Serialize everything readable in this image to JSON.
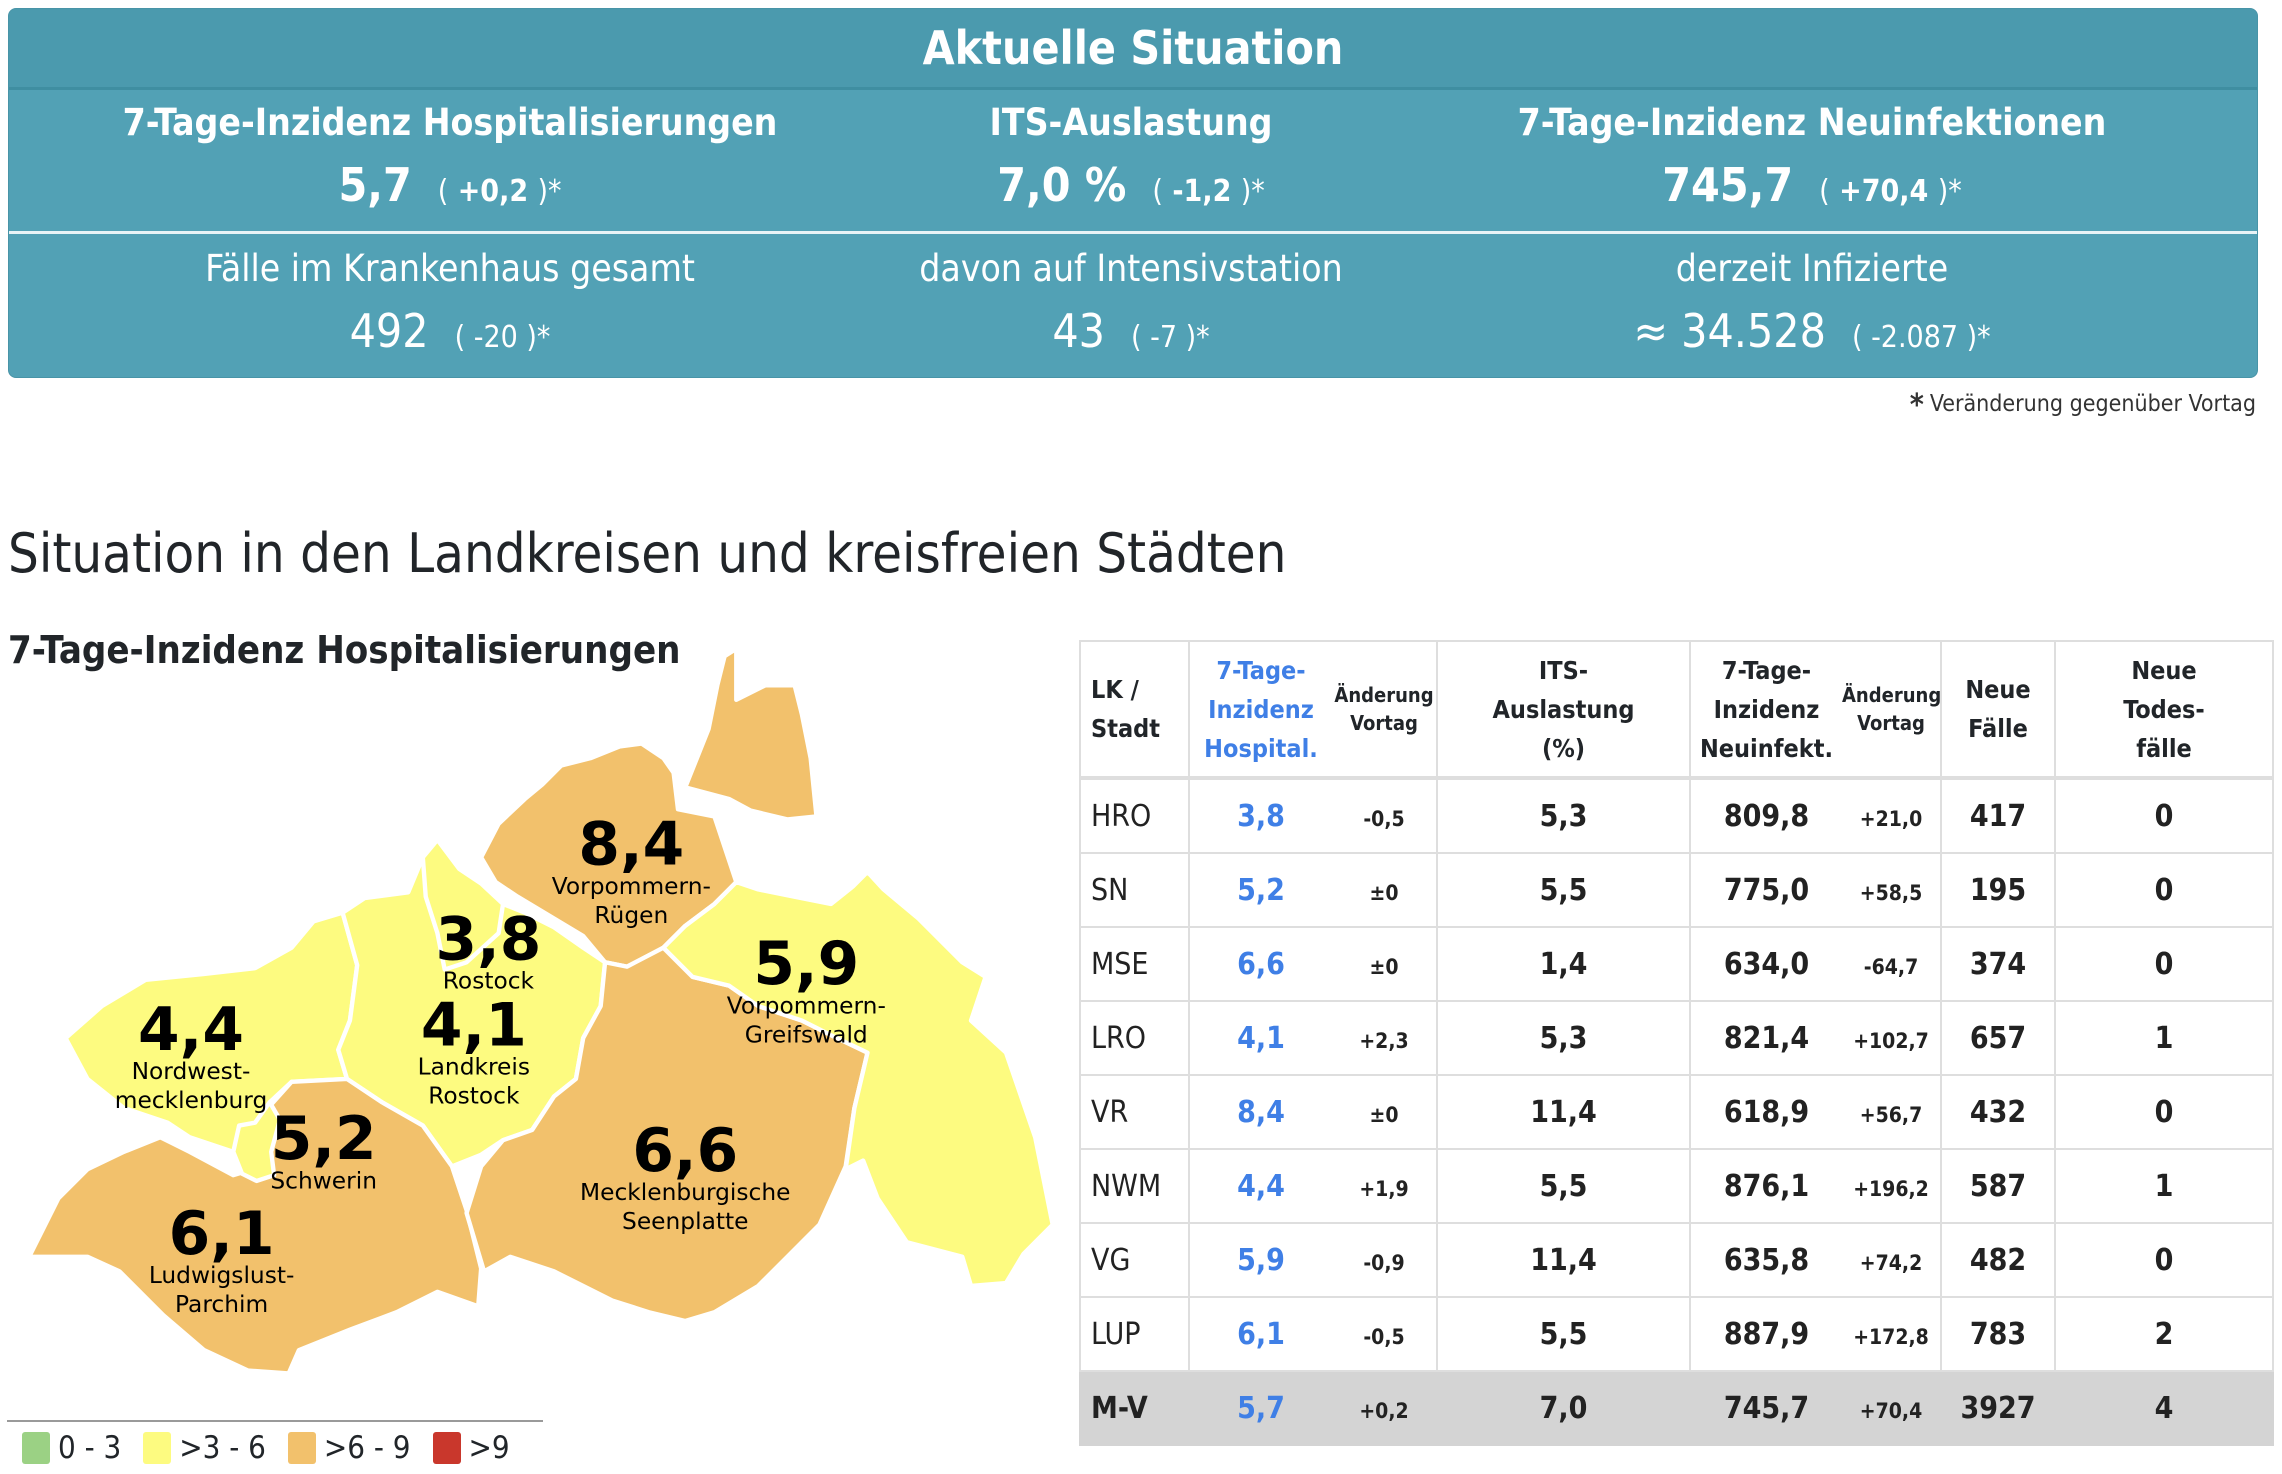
{
  "summary": {
    "title": "Aktuelle Situation",
    "top": [
      {
        "label": "7-Tage-Inzidenz Hospitalisierungen",
        "value": "5,7",
        "change": "+0,2"
      },
      {
        "label": "ITS-Auslastung",
        "value": "7,0 %",
        "change": "-1,2"
      },
      {
        "label": "7-Tage-Inzidenz Neuinfektionen",
        "value": "745,7",
        "change": "+70,4"
      }
    ],
    "bottom": [
      {
        "label": "Fälle im Krankenhaus gesamt",
        "value": "492",
        "change": "-20"
      },
      {
        "label": "davon auf Intensivstation",
        "value": "43",
        "change": "-7"
      },
      {
        "label": "derzeit Infizierte",
        "value": "≈ 34.528",
        "change": "-2.087"
      }
    ],
    "paren_open": "(",
    "paren_close": ")*",
    "footnote_star": "*",
    "footnote_text": "Veränderung gegenüber Vortag"
  },
  "section_title": "Situation in den Landkreisen und kreisfreien Städten",
  "chart_data": {
    "type": "map",
    "title": "7-Tage-Inzidenz Hospitalisierungen",
    "regions": [
      {
        "id": "VR",
        "name_lines": [
          "Vorpommern-",
          "Rügen"
        ],
        "value": 8.4,
        "label": "8,4",
        "class": ">6 - 9"
      },
      {
        "id": "HRO",
        "name_lines": [
          "Rostock"
        ],
        "value": 3.8,
        "label": "3,8",
        "class": ">3 - 6"
      },
      {
        "id": "VG",
        "name_lines": [
          "Vorpommern-",
          "Greifswald"
        ],
        "value": 5.9,
        "label": "5,9",
        "class": ">3 - 6"
      },
      {
        "id": "NWM",
        "name_lines": [
          "Nordwest-",
          "mecklenburg"
        ],
        "value": 4.4,
        "label": "4,4",
        "class": ">3 - 6"
      },
      {
        "id": "LRO",
        "name_lines": [
          "Landkreis",
          "Rostock"
        ],
        "value": 4.1,
        "label": "4,1",
        "class": ">3 - 6"
      },
      {
        "id": "SN",
        "name_lines": [
          "Schwerin"
        ],
        "value": 5.2,
        "label": "5,2",
        "class": ">3 - 6"
      },
      {
        "id": "MSE",
        "name_lines": [
          "Mecklenburgische",
          "Seenplatte"
        ],
        "value": 6.6,
        "label": "6,6",
        "class": ">6 - 9"
      },
      {
        "id": "LUP",
        "name_lines": [
          "Ludwigslust-",
          "Parchim"
        ],
        "value": 6.1,
        "label": "6,1",
        "class": ">6 - 9"
      }
    ],
    "legend": [
      {
        "label": "0 - 3",
        "color": "#9bd184"
      },
      {
        "label": ">3 - 6",
        "color": "#fdfb80"
      },
      {
        "label": ">6 - 9",
        "color": "#f2c16c"
      },
      {
        "label": ">9",
        "color": "#c9372c"
      }
    ]
  },
  "table": {
    "headers": {
      "lk": "LK / Stadt",
      "hosp": "7-Tage- Inzidenz Hospital.",
      "hosp_change": "Änderung Vortag",
      "its": "ITS- Auslastung (%)",
      "inf": "7-Tage- Inzidenz Neuinfekt.",
      "inf_change": "Änderung Vortag",
      "cases": "Neue Fälle",
      "deaths": "Neue Todes- fälle"
    },
    "header_lines": {
      "lk": [
        "LK /",
        "Stadt"
      ],
      "hosp": [
        "7-Tage-",
        "Inzidenz",
        "Hospital."
      ],
      "hosp_change": [
        "Änderung",
        "Vortag"
      ],
      "its": [
        "ITS-",
        "Auslastung",
        "(%)"
      ],
      "inf": [
        "7-Tage-",
        "Inzidenz",
        "Neuinfekt."
      ],
      "inf_change": [
        "Änderung",
        "Vortag"
      ],
      "cases": [
        "Neue",
        "Fälle"
      ],
      "deaths": [
        "Neue",
        "Todes-",
        "fälle"
      ]
    },
    "rows": [
      {
        "lk": "HRO",
        "hosp": "3,8",
        "hosp_change": "-0,5",
        "its": "5,3",
        "inf": "809,8",
        "inf_change": "+21,0",
        "cases": "417",
        "deaths": "0"
      },
      {
        "lk": "SN",
        "hosp": "5,2",
        "hosp_change": "±0",
        "its": "5,5",
        "inf": "775,0",
        "inf_change": "+58,5",
        "cases": "195",
        "deaths": "0"
      },
      {
        "lk": "MSE",
        "hosp": "6,6",
        "hosp_change": "±0",
        "its": "1,4",
        "inf": "634,0",
        "inf_change": "-64,7",
        "cases": "374",
        "deaths": "0"
      },
      {
        "lk": "LRO",
        "hosp": "4,1",
        "hosp_change": "+2,3",
        "its": "5,3",
        "inf": "821,4",
        "inf_change": "+102,7",
        "cases": "657",
        "deaths": "1"
      },
      {
        "lk": "VR",
        "hosp": "8,4",
        "hosp_change": "±0",
        "its": "11,4",
        "inf": "618,9",
        "inf_change": "+56,7",
        "cases": "432",
        "deaths": "0"
      },
      {
        "lk": "NWM",
        "hosp": "4,4",
        "hosp_change": "+1,9",
        "its": "5,5",
        "inf": "876,1",
        "inf_change": "+196,2",
        "cases": "587",
        "deaths": "1"
      },
      {
        "lk": "VG",
        "hosp": "5,9",
        "hosp_change": "-0,9",
        "its": "11,4",
        "inf": "635,8",
        "inf_change": "+74,2",
        "cases": "482",
        "deaths": "0"
      },
      {
        "lk": "LUP",
        "hosp": "6,1",
        "hosp_change": "-0,5",
        "its": "5,5",
        "inf": "887,9",
        "inf_change": "+172,8",
        "cases": "783",
        "deaths": "2"
      }
    ],
    "total": {
      "lk": "M-V",
      "hosp": "5,7",
      "hosp_change": "+0,2",
      "its": "7,0",
      "inf": "745,7",
      "inf_change": "+70,4",
      "cases": "3927",
      "deaths": "4"
    }
  }
}
